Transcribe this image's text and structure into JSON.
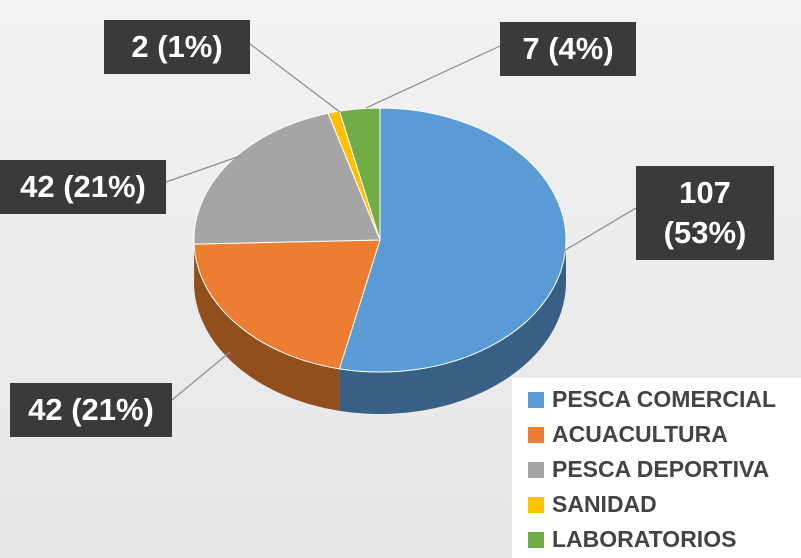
{
  "chart_data": {
    "type": "pie",
    "categories": [
      "PESCA COMERCIAL",
      "ACUACULTURA",
      "PESCA DEPORTIVA",
      "SANIDAD",
      "LABORATORIOS"
    ],
    "values": [
      107,
      42,
      42,
      2,
      7
    ],
    "value_labels": [
      "107 (53%)",
      "42 (21%)",
      "42 (21%)",
      "2 (1%)",
      "7 (4%)"
    ],
    "colors": [
      "#5b9bd5",
      "#ed7d31",
      "#a5a5a5",
      "#ffc000",
      "#70ad47"
    ],
    "legend": "bottom-right"
  }
}
